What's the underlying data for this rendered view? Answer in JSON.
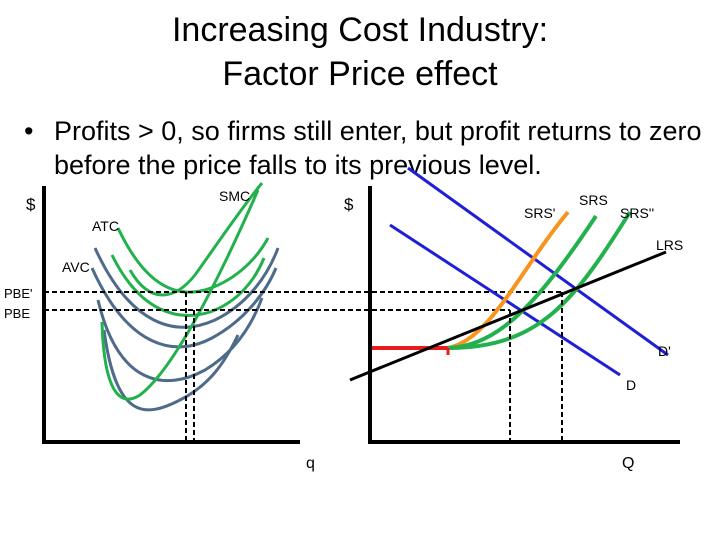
{
  "slide": {
    "title_line1": "Increasing Cost Industry:",
    "title_line2": "Factor Price effect",
    "bullet_symbol": "•",
    "bullet_text": "Profits > 0, so firms still enter, but profit returns to zero before the price falls to its previous level."
  },
  "firm_graph": {
    "y_axis_label": "$",
    "x_axis_label": "q",
    "price_label_new": "PBE'",
    "price_label_old": "PBE",
    "curve_labels": {
      "smc": "SMC",
      "atc": "ATC",
      "avc": "AVC"
    }
  },
  "market_graph": {
    "y_axis_label": "$",
    "x_axis_label": "Q",
    "curve_labels": {
      "srs_prime": "SRS'",
      "srs": "SRS",
      "srs_double": "SRS''",
      "lrs": "LRS",
      "demand_new": "D'",
      "demand": "D"
    }
  },
  "colors": {
    "green": "#22b14c",
    "gray_blue": "#4f6b8a",
    "blue": "#1f1fd6",
    "orange": "#f7941d",
    "red": "#e81c1c",
    "black": "#000000"
  }
}
